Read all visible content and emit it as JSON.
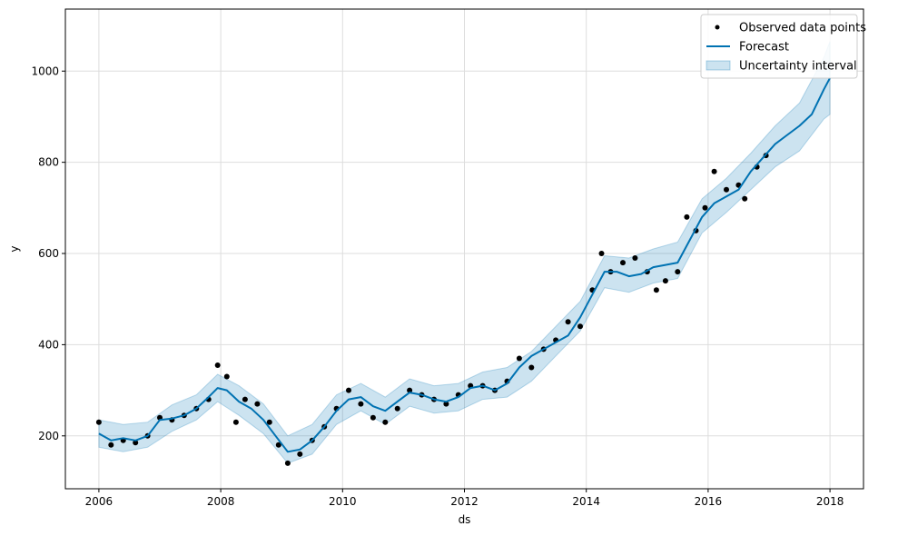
{
  "chart_data": {
    "type": "line",
    "title": "",
    "xlabel": "ds",
    "ylabel": "y",
    "xlim": [
      2005.45,
      2018.55
    ],
    "ylim": [
      84,
      1136
    ],
    "x_ticks": [
      2006,
      2008,
      2010,
      2012,
      2014,
      2016,
      2018
    ],
    "x_tick_labels": [
      "2006",
      "2008",
      "2010",
      "2012",
      "2014",
      "2016",
      "2018"
    ],
    "y_ticks": [
      200,
      400,
      600,
      800,
      1000
    ],
    "y_tick_labels": [
      "200",
      "400",
      "600",
      "800",
      "1000"
    ],
    "grid": true,
    "legend_position": "top-right",
    "colors": {
      "observed": "#000000",
      "forecast": "#0072B2",
      "band_fill": "#0072B2",
      "band_alpha": 0.2,
      "grid": "#dddddd"
    },
    "series": [
      {
        "name": "Observed data points",
        "kind": "scatter",
        "x": [
          2006.0,
          2006.2,
          2006.4,
          2006.6,
          2006.8,
          2007.0,
          2007.2,
          2007.4,
          2007.6,
          2007.8,
          2007.95,
          2008.1,
          2008.25,
          2008.4,
          2008.6,
          2008.8,
          2008.95,
          2009.1,
          2009.3,
          2009.5,
          2009.7,
          2009.9,
          2010.1,
          2010.3,
          2010.5,
          2010.7,
          2010.9,
          2011.1,
          2011.3,
          2011.5,
          2011.7,
          2011.9,
          2012.1,
          2012.3,
          2012.5,
          2012.7,
          2012.9,
          2013.1,
          2013.3,
          2013.5,
          2013.7,
          2013.9,
          2014.1,
          2014.25,
          2014.4,
          2014.6,
          2014.8,
          2015.0,
          2015.15,
          2015.3,
          2015.5,
          2015.65,
          2015.8,
          2015.95,
          2016.1,
          2016.3,
          2016.5,
          2016.6,
          2016.8,
          2016.95
        ],
        "y": [
          230,
          180,
          190,
          185,
          200,
          240,
          235,
          245,
          260,
          280,
          355,
          330,
          230,
          280,
          270,
          230,
          180,
          140,
          160,
          190,
          220,
          260,
          300,
          270,
          240,
          230,
          260,
          300,
          290,
          280,
          270,
          290,
          310,
          310,
          300,
          320,
          370,
          350,
          390,
          410,
          450,
          440,
          520,
          600,
          560,
          580,
          590,
          560,
          520,
          540,
          560,
          680,
          650,
          700,
          780,
          740,
          750,
          720,
          790,
          815
        ]
      },
      {
        "name": "Forecast",
        "kind": "line",
        "x": [
          2006.0,
          2006.2,
          2006.4,
          2006.6,
          2006.8,
          2007.0,
          2007.2,
          2007.4,
          2007.6,
          2007.8,
          2007.95,
          2008.1,
          2008.3,
          2008.5,
          2008.7,
          2008.9,
          2009.1,
          2009.3,
          2009.5,
          2009.7,
          2009.9,
          2010.1,
          2010.3,
          2010.5,
          2010.7,
          2010.9,
          2011.1,
          2011.3,
          2011.5,
          2011.7,
          2011.9,
          2012.1,
          2012.3,
          2012.5,
          2012.7,
          2012.9,
          2013.1,
          2013.3,
          2013.5,
          2013.7,
          2013.9,
          2014.1,
          2014.3,
          2014.5,
          2014.7,
          2014.9,
          2015.1,
          2015.3,
          2015.5,
          2015.7,
          2015.9,
          2016.1,
          2016.3,
          2016.5,
          2016.7,
          2016.9,
          2017.1,
          2017.3,
          2017.5,
          2017.7,
          2017.9,
          2018.0
        ],
        "y": [
          205,
          190,
          195,
          190,
          200,
          235,
          238,
          245,
          260,
          285,
          305,
          300,
          275,
          260,
          235,
          200,
          165,
          170,
          190,
          220,
          255,
          280,
          285,
          265,
          255,
          275,
          295,
          290,
          280,
          275,
          285,
          305,
          310,
          300,
          315,
          350,
          375,
          390,
          405,
          420,
          460,
          510,
          560,
          560,
          550,
          555,
          570,
          575,
          580,
          630,
          680,
          710,
          725,
          740,
          780,
          810,
          840,
          860,
          880,
          905,
          960,
          985
        ]
      },
      {
        "name": "Uncertainty interval",
        "kind": "band",
        "x": [
          2006.0,
          2006.4,
          2006.8,
          2007.2,
          2007.6,
          2007.95,
          2008.3,
          2008.7,
          2009.1,
          2009.5,
          2009.9,
          2010.3,
          2010.7,
          2011.1,
          2011.5,
          2011.9,
          2012.3,
          2012.7,
          2013.1,
          2013.5,
          2013.9,
          2014.3,
          2014.7,
          2015.1,
          2015.5,
          2015.9,
          2016.3,
          2016.7,
          2017.1,
          2017.5,
          2017.9,
          2018.0
        ],
        "lower": [
          175,
          165,
          175,
          210,
          235,
          275,
          245,
          205,
          140,
          160,
          225,
          255,
          225,
          265,
          250,
          255,
          280,
          285,
          320,
          375,
          430,
          525,
          515,
          535,
          545,
          645,
          690,
          740,
          790,
          825,
          895,
          905
        ],
        "upper": [
          235,
          225,
          230,
          268,
          290,
          335,
          310,
          270,
          200,
          225,
          290,
          315,
          285,
          325,
          310,
          315,
          340,
          350,
          385,
          440,
          495,
          595,
          590,
          610,
          625,
          720,
          765,
          820,
          880,
          930,
          1030,
          1065
        ]
      }
    ]
  }
}
